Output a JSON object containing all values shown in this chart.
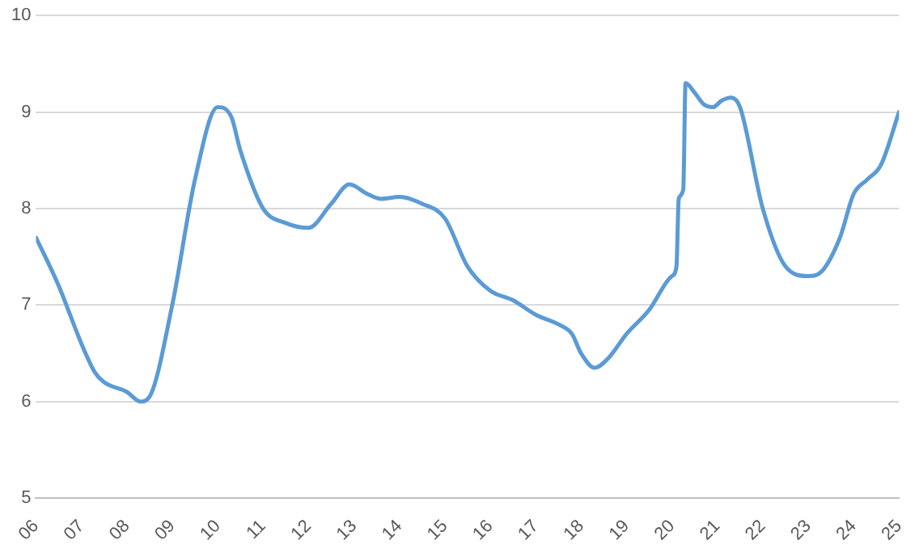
{
  "chart_data": {
    "type": "line",
    "x": [
      2006.0,
      2006.5,
      2007.0,
      2007.3,
      2007.5,
      2008.0,
      2008.3,
      2008.5,
      2009.0,
      2009.5,
      2010.0,
      2010.3,
      2010.5,
      2011.0,
      2011.5,
      2012.0,
      2012.5,
      2012.9,
      2013.3,
      2013.6,
      2014.0,
      2014.5,
      2015.0,
      2015.5,
      2016.0,
      2016.5,
      2017.0,
      2017.5,
      2017.8,
      2018.0,
      2018.3,
      2018.6,
      2019.0,
      2019.5,
      2020.0,
      2020.1,
      2020.15,
      2020.25,
      2020.3,
      2020.5,
      2020.7,
      2020.9,
      2021.1,
      2021.3,
      2021.5,
      2022.0,
      2022.5,
      2023.0,
      2023.3,
      2023.7,
      2024.0,
      2024.3,
      2024.6,
      2025.0
    ],
    "series": [
      {
        "color": "#5b9bd5",
        "values": [
          7.7,
          7.2,
          6.6,
          6.3,
          6.2,
          6.1,
          6.0,
          6.05,
          7.0,
          8.3,
          9.05,
          8.95,
          8.6,
          8.0,
          7.85,
          7.8,
          8.05,
          8.25,
          8.15,
          8.1,
          8.12,
          8.05,
          7.9,
          7.4,
          7.15,
          7.05,
          6.9,
          6.8,
          6.7,
          6.5,
          6.35,
          6.45,
          6.7,
          6.95,
          7.3,
          7.4,
          8.1,
          8.2,
          9.3,
          9.2,
          9.08,
          9.05,
          9.12,
          9.15,
          9.05,
          8.0,
          7.4,
          7.3,
          7.35,
          7.7,
          8.15,
          8.3,
          8.45,
          9.0
        ]
      }
    ],
    "xlim": [
      2006,
      2025
    ],
    "xticks": [
      {
        "value": 2006,
        "label": "06"
      },
      {
        "value": 2007,
        "label": "07"
      },
      {
        "value": 2008,
        "label": "08"
      },
      {
        "value": 2009,
        "label": "09"
      },
      {
        "value": 2010,
        "label": "10"
      },
      {
        "value": 2011,
        "label": "11"
      },
      {
        "value": 2012,
        "label": "12"
      },
      {
        "value": 2013,
        "label": "13"
      },
      {
        "value": 2014,
        "label": "14"
      },
      {
        "value": 2015,
        "label": "15"
      },
      {
        "value": 2016,
        "label": "16"
      },
      {
        "value": 2017,
        "label": "17"
      },
      {
        "value": 2018,
        "label": "18"
      },
      {
        "value": 2019,
        "label": "19"
      },
      {
        "value": 2020,
        "label": "20"
      },
      {
        "value": 2021,
        "label": "21"
      },
      {
        "value": 2022,
        "label": "22"
      },
      {
        "value": 2023,
        "label": "23"
      },
      {
        "value": 2024,
        "label": "24"
      },
      {
        "value": 2025,
        "label": "25"
      }
    ],
    "ylim": [
      5,
      10
    ],
    "yticks": [
      5,
      6,
      7,
      8,
      9,
      10
    ],
    "grid": "y",
    "marker": "none",
    "line_style": "solid"
  }
}
